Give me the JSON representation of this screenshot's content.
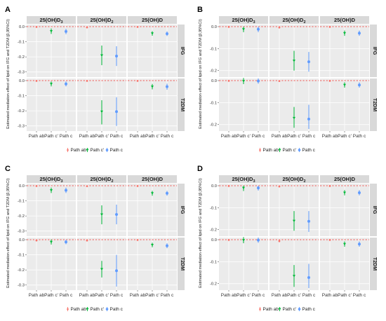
{
  "panels": [
    {
      "label": "A",
      "yticks": [
        "0.0",
        "-0.1",
        "-0.2",
        "-0.3"
      ],
      "ymin": -0.32,
      "strips_top": [
        "25(OH)D3",
        "25(OH)D2",
        "25(OH)D"
      ],
      "strips_right": [
        "IFG",
        "T2DM"
      ]
    },
    {
      "label": "B",
      "yticks": [
        "0.0",
        "-0.1",
        "-0.2"
      ],
      "ymin": -0.22,
      "strips_top": [
        "25(OH)D3",
        "25(OH)D2",
        "25(OH)D"
      ],
      "strips_right": [
        "IFG",
        "T2DM"
      ]
    },
    {
      "label": "C",
      "yticks": [
        "0.0",
        "-0.1",
        "-0.2",
        "-0.3"
      ],
      "ymin": -0.32,
      "strips_top": [
        "25(OH)D3",
        "25(OH)D2",
        "25(OH)D"
      ],
      "strips_right": [
        "IFG",
        "T2DM"
      ]
    },
    {
      "label": "D",
      "yticks": [
        "0.0",
        "-0.1",
        "-0.2"
      ],
      "ymin": -0.22,
      "strips_top": [
        "25(OH)D3",
        "25(OH)D2",
        "25(OH)D"
      ],
      "strips_right": [
        "IFG",
        "T2DM"
      ]
    }
  ],
  "ylabel": "Estimated mediation effect of lipid on IFG and T2DM (β,95%CI)",
  "xticks": [
    "Path ab",
    "Path c'",
    "Path c"
  ],
  "legend": [
    "Path ab",
    "Path c'",
    "Path c"
  ],
  "colors": {
    "Path ab": "#f8766d",
    "Path c'": "#00ba38",
    "Path c": "#619cff"
  },
  "chart_data": [
    {
      "panel": "A",
      "type": "scatter",
      "ylim": [
        -0.32,
        0.0
      ],
      "facets": [
        {
          "col": "25(OH)D3",
          "row": "IFG",
          "series": [
            {
              "name": "Path ab",
              "est": -0.002,
              "lo": -0.004,
              "hi": 0.0
            },
            {
              "name": "Path c'",
              "est": -0.03,
              "lo": -0.048,
              "hi": -0.012
            },
            {
              "name": "Path c",
              "est": -0.032,
              "lo": -0.05,
              "hi": -0.014
            }
          ]
        },
        {
          "col": "25(OH)D2",
          "row": "IFG",
          "series": [
            {
              "name": "Path ab",
              "est": -0.005,
              "lo": -0.01,
              "hi": 0.0
            },
            {
              "name": "Path c'",
              "est": -0.19,
              "lo": -0.255,
              "hi": -0.125
            },
            {
              "name": "Path c",
              "est": -0.195,
              "lo": -0.26,
              "hi": -0.13
            }
          ]
        },
        {
          "col": "25(OH)D",
          "row": "IFG",
          "series": [
            {
              "name": "Path ab",
              "est": -0.002,
              "lo": -0.004,
              "hi": 0.0
            },
            {
              "name": "Path c'",
              "est": -0.045,
              "lo": -0.06,
              "hi": -0.03
            },
            {
              "name": "Path c",
              "est": -0.047,
              "lo": -0.062,
              "hi": -0.032
            }
          ]
        },
        {
          "col": "25(OH)D3",
          "row": "T2DM",
          "series": [
            {
              "name": "Path ab",
              "est": -0.002,
              "lo": -0.004,
              "hi": 0.0
            },
            {
              "name": "Path c'",
              "est": -0.022,
              "lo": -0.038,
              "hi": -0.006
            },
            {
              "name": "Path c",
              "est": -0.022,
              "lo": -0.038,
              "hi": -0.006
            }
          ]
        },
        {
          "col": "25(OH)D2",
          "row": "T2DM",
          "series": [
            {
              "name": "Path ab",
              "est": -0.002,
              "lo": -0.006,
              "hi": 0.0
            },
            {
              "name": "Path c'",
              "est": -0.205,
              "lo": -0.29,
              "hi": -0.13
            },
            {
              "name": "Path c",
              "est": -0.205,
              "lo": -0.3,
              "hi": -0.11
            }
          ]
        },
        {
          "col": "25(OH)D",
          "row": "T2DM",
          "series": [
            {
              "name": "Path ab",
              "est": -0.002,
              "lo": -0.004,
              "hi": 0.0
            },
            {
              "name": "Path c'",
              "est": -0.04,
              "lo": -0.058,
              "hi": -0.022
            },
            {
              "name": "Path c",
              "est": -0.04,
              "lo": -0.06,
              "hi": -0.02
            }
          ]
        }
      ]
    },
    {
      "panel": "B",
      "type": "scatter",
      "ylim": [
        -0.22,
        0.0
      ],
      "facets": [
        {
          "col": "25(OH)D3",
          "row": "IFG",
          "series": [
            {
              "name": "Path ab",
              "est": -0.001,
              "lo": -0.003,
              "hi": 0.0
            },
            {
              "name": "Path c'",
              "est": -0.012,
              "lo": -0.025,
              "hi": 0.0
            },
            {
              "name": "Path c",
              "est": -0.012,
              "lo": -0.025,
              "hi": 0.0
            }
          ]
        },
        {
          "col": "25(OH)D2",
          "row": "IFG",
          "series": [
            {
              "name": "Path ab",
              "est": -0.004,
              "lo": -0.008,
              "hi": 0.0
            },
            {
              "name": "Path c'",
              "est": -0.155,
              "lo": -0.2,
              "hi": -0.11
            },
            {
              "name": "Path c",
              "est": -0.16,
              "lo": -0.205,
              "hi": -0.115
            }
          ]
        },
        {
          "col": "25(OH)D",
          "row": "IFG",
          "series": [
            {
              "name": "Path ab",
              "est": -0.001,
              "lo": -0.003,
              "hi": 0.0
            },
            {
              "name": "Path c'",
              "est": -0.03,
              "lo": -0.042,
              "hi": -0.018
            },
            {
              "name": "Path c",
              "est": -0.03,
              "lo": -0.042,
              "hi": -0.018
            }
          ]
        },
        {
          "col": "25(OH)D3",
          "row": "T2DM",
          "series": [
            {
              "name": "Path ab",
              "est": -0.001,
              "lo": -0.003,
              "hi": 0.0
            },
            {
              "name": "Path c'",
              "est": -0.002,
              "lo": -0.016,
              "hi": 0.012
            },
            {
              "name": "Path c",
              "est": -0.002,
              "lo": -0.014,
              "hi": 0.01
            }
          ]
        },
        {
          "col": "25(OH)D2",
          "row": "T2DM",
          "series": [
            {
              "name": "Path ab",
              "est": -0.002,
              "lo": -0.006,
              "hi": 0.0
            },
            {
              "name": "Path c'",
              "est": -0.17,
              "lo": -0.215,
              "hi": -0.12
            },
            {
              "name": "Path c",
              "est": -0.175,
              "lo": -0.22,
              "hi": -0.11
            }
          ]
        },
        {
          "col": "25(OH)D",
          "row": "T2DM",
          "series": [
            {
              "name": "Path ab",
              "est": -0.001,
              "lo": -0.003,
              "hi": 0.0
            },
            {
              "name": "Path c'",
              "est": -0.02,
              "lo": -0.032,
              "hi": -0.008
            },
            {
              "name": "Path c",
              "est": -0.02,
              "lo": -0.032,
              "hi": -0.008
            }
          ]
        }
      ]
    },
    {
      "panel": "C",
      "type": "scatter",
      "ylim": [
        -0.32,
        0.0
      ],
      "facets": [
        {
          "col": "25(OH)D3",
          "row": "IFG",
          "series": [
            {
              "name": "Path ab",
              "est": -0.002,
              "lo": -0.004,
              "hi": 0.0
            },
            {
              "name": "Path c'",
              "est": -0.03,
              "lo": -0.048,
              "hi": -0.012
            },
            {
              "name": "Path c",
              "est": -0.03,
              "lo": -0.048,
              "hi": -0.012
            }
          ]
        },
        {
          "col": "25(OH)D2",
          "row": "IFG",
          "series": [
            {
              "name": "Path ab",
              "est": -0.003,
              "lo": -0.007,
              "hi": 0.0
            },
            {
              "name": "Path c'",
              "est": -0.19,
              "lo": -0.255,
              "hi": -0.13
            },
            {
              "name": "Path c",
              "est": -0.19,
              "lo": -0.255,
              "hi": -0.125
            }
          ]
        },
        {
          "col": "25(OH)D",
          "row": "IFG",
          "series": [
            {
              "name": "Path ab",
              "est": -0.002,
              "lo": -0.004,
              "hi": 0.0
            },
            {
              "name": "Path c'",
              "est": -0.05,
              "lo": -0.066,
              "hi": -0.034
            },
            {
              "name": "Path c",
              "est": -0.05,
              "lo": -0.066,
              "hi": -0.034
            }
          ]
        },
        {
          "col": "25(OH)D3",
          "row": "T2DM",
          "series": [
            {
              "name": "Path ab",
              "est": -0.005,
              "lo": -0.01,
              "hi": 0.0
            },
            {
              "name": "Path c'",
              "est": -0.015,
              "lo": -0.032,
              "hi": 0.002
            },
            {
              "name": "Path c",
              "est": -0.015,
              "lo": -0.03,
              "hi": 0.0
            }
          ]
        },
        {
          "col": "25(OH)D2",
          "row": "T2DM",
          "series": [
            {
              "name": "Path ab",
              "est": -0.005,
              "lo": -0.012,
              "hi": 0.0
            },
            {
              "name": "Path c'",
              "est": -0.195,
              "lo": -0.25,
              "hi": -0.14
            },
            {
              "name": "Path c",
              "est": -0.205,
              "lo": -0.31,
              "hi": -0.1
            }
          ]
        },
        {
          "col": "25(OH)D",
          "row": "T2DM",
          "series": [
            {
              "name": "Path ab",
              "est": -0.002,
              "lo": -0.004,
              "hi": 0.0
            },
            {
              "name": "Path c'",
              "est": -0.035,
              "lo": -0.05,
              "hi": -0.02
            },
            {
              "name": "Path c",
              "est": -0.04,
              "lo": -0.056,
              "hi": -0.024
            }
          ]
        }
      ]
    },
    {
      "panel": "D",
      "type": "scatter",
      "ylim": [
        -0.22,
        0.0
      ],
      "facets": [
        {
          "col": "25(OH)D3",
          "row": "IFG",
          "series": [
            {
              "name": "Path ab",
              "est": -0.001,
              "lo": -0.003,
              "hi": 0.0
            },
            {
              "name": "Path c'",
              "est": -0.01,
              "lo": -0.024,
              "hi": 0.0
            },
            {
              "name": "Path c",
              "est": -0.01,
              "lo": -0.022,
              "hi": 0.0
            }
          ]
        },
        {
          "col": "25(OH)D2",
          "row": "IFG",
          "series": [
            {
              "name": "Path ab",
              "est": -0.003,
              "lo": -0.007,
              "hi": 0.0
            },
            {
              "name": "Path c'",
              "est": -0.16,
              "lo": -0.205,
              "hi": -0.115
            },
            {
              "name": "Path c",
              "est": -0.162,
              "lo": -0.21,
              "hi": -0.115
            }
          ]
        },
        {
          "col": "25(OH)D",
          "row": "IFG",
          "series": [
            {
              "name": "Path ab",
              "est": -0.001,
              "lo": -0.003,
              "hi": 0.0
            },
            {
              "name": "Path c'",
              "est": -0.032,
              "lo": -0.044,
              "hi": -0.02
            },
            {
              "name": "Path c",
              "est": -0.032,
              "lo": -0.044,
              "hi": -0.02
            }
          ]
        },
        {
          "col": "25(OH)D3",
          "row": "T2DM",
          "series": [
            {
              "name": "Path ab",
              "est": -0.001,
              "lo": -0.003,
              "hi": 0.0
            },
            {
              "name": "Path c'",
              "est": -0.002,
              "lo": -0.016,
              "hi": 0.012
            },
            {
              "name": "Path c",
              "est": -0.002,
              "lo": -0.014,
              "hi": 0.01
            }
          ]
        },
        {
          "col": "25(OH)D2",
          "row": "T2DM",
          "series": [
            {
              "name": "Path ab",
              "est": -0.006,
              "lo": -0.012,
              "hi": 0.0
            },
            {
              "name": "Path c'",
              "est": -0.165,
              "lo": -0.215,
              "hi": -0.115
            },
            {
              "name": "Path c",
              "est": -0.172,
              "lo": -0.22,
              "hi": -0.11
            }
          ]
        },
        {
          "col": "25(OH)D",
          "row": "T2DM",
          "series": [
            {
              "name": "Path ab",
              "est": -0.001,
              "lo": -0.003,
              "hi": 0.0
            },
            {
              "name": "Path c'",
              "est": -0.02,
              "lo": -0.032,
              "hi": -0.008
            },
            {
              "name": "Path c",
              "est": -0.02,
              "lo": -0.032,
              "hi": -0.008
            }
          ]
        }
      ]
    }
  ]
}
